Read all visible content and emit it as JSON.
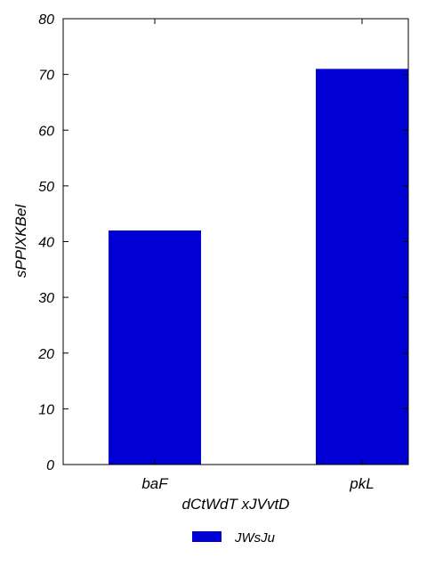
{
  "chart_data": {
    "type": "bar",
    "categories": [
      "baF",
      "pkL"
    ],
    "series": [
      {
        "name": "JWsJu",
        "values": [
          42,
          71
        ],
        "color": "#0000d4"
      }
    ],
    "xlabel": "dCtWdT xJVvtD",
    "ylabel": "sPPlXKBel",
    "ylim": [
      0,
      80
    ],
    "yticks": [
      0,
      10,
      20,
      30,
      40,
      50,
      60,
      70,
      80
    ],
    "grid": false,
    "legend_position": "bottom-center"
  }
}
